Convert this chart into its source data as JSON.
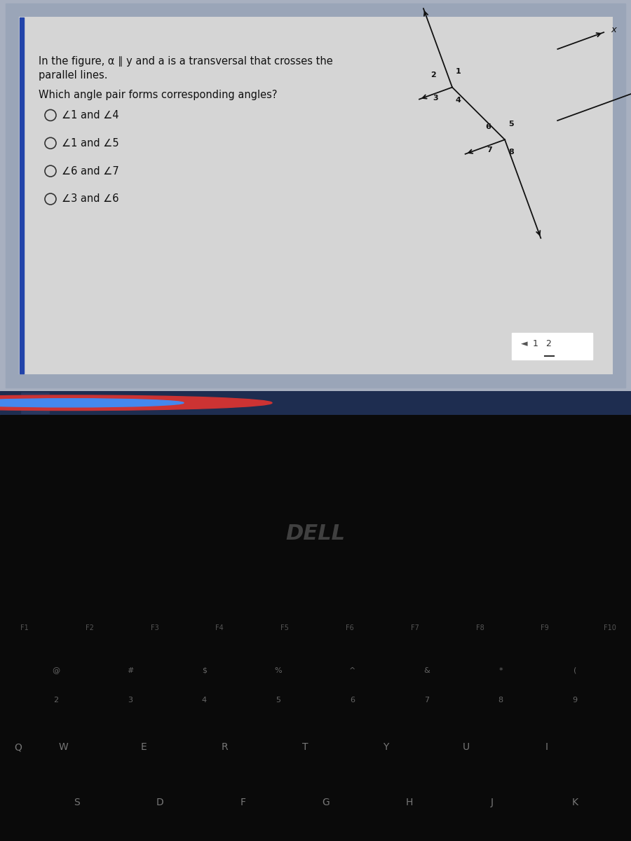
{
  "bg_outer": "#a8b0c0",
  "bg_screen_bezel": "#8898b0",
  "bg_paper": "#d8d8d8",
  "bg_taskbar": "#1a2540",
  "bg_keyboard": "#080808",
  "text_color": "#111111",
  "title_line1": "In the figure, α ∥ y and a is a transversal that crosses the",
  "title_line2": "parallel lines.",
  "question": "Which angle pair forms corresponding angles?",
  "options": [
    "∠1 and ∠4",
    "∠1 and ∠5",
    "∠6 and ∠7",
    "∠3 and ∠6"
  ],
  "fkeys": [
    "F1",
    "F2",
    "F3",
    "F4",
    "F5",
    "F6",
    "F7",
    "F8",
    "F9",
    "F10"
  ],
  "num_syms": [
    "@",
    "#",
    "$",
    "%",
    "^",
    "&",
    "*",
    "("
  ],
  "num_nums": [
    "2",
    "3",
    "4",
    "5",
    "6",
    "7",
    "8",
    "9"
  ],
  "qrow": [
    "W",
    "E",
    "R",
    "T",
    "Y",
    "U",
    "I"
  ],
  "arow": [
    "S",
    "D",
    "F",
    "G",
    "H",
    "J",
    "K"
  ],
  "dell_text": "DELL"
}
